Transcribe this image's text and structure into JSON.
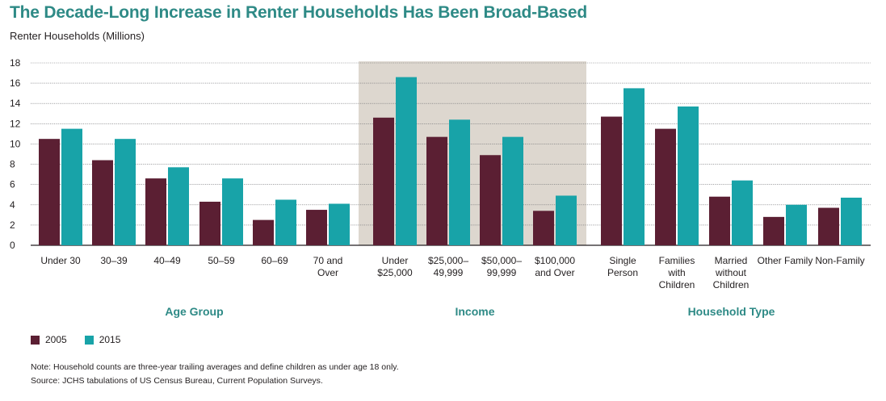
{
  "title": "The Decade-Long Increase in Renter Households Has Been Broad-Based",
  "subtitle": "Renter Households (Millions)",
  "colors": {
    "series_2005": "#5b1f33",
    "series_2015": "#18a3a8",
    "group_title": "#2e8a86",
    "highlight_band": "#ddd7cf"
  },
  "chart_data": {
    "type": "bar",
    "ylim": [
      0,
      18
    ],
    "yticks": [
      "0",
      "2",
      "4",
      "6",
      "8",
      "10",
      "12",
      "14",
      "16",
      "18"
    ],
    "grid": true,
    "legend_position": "bottom-left",
    "highlighted_group": "Income",
    "groups": [
      {
        "name": "Age Group",
        "categories": [
          [
            "Under 30"
          ],
          [
            "30–39"
          ],
          [
            "40–49"
          ],
          [
            "50–59"
          ],
          [
            "60–69"
          ],
          [
            "70 and",
            "Over"
          ]
        ]
      },
      {
        "name": "Income",
        "categories": [
          [
            "Under",
            "$25,000"
          ],
          [
            "$25,000–",
            "49,999"
          ],
          [
            "$50,000–",
            "99,999"
          ],
          [
            "$100,000",
            "and Over"
          ]
        ]
      },
      {
        "name": "Household Type",
        "categories": [
          [
            "Single",
            "Person"
          ],
          [
            "Families",
            "with",
            "Children"
          ],
          [
            "Married",
            "without",
            "Children"
          ],
          [
            "Other Family"
          ],
          [
            "Non-Family"
          ]
        ]
      }
    ],
    "series": [
      {
        "name": "2005",
        "values": [
          10.5,
          8.4,
          6.6,
          4.3,
          2.5,
          3.5,
          12.6,
          10.7,
          8.9,
          3.4,
          12.7,
          11.5,
          4.8,
          2.8,
          3.7
        ]
      },
      {
        "name": "2015",
        "values": [
          11.5,
          10.5,
          7.7,
          6.6,
          4.5,
          4.1,
          16.6,
          12.4,
          10.7,
          4.9,
          15.5,
          13.7,
          6.4,
          4.0,
          4.7
        ]
      }
    ]
  },
  "legend": [
    {
      "label": "2005"
    },
    {
      "label": "2015"
    }
  ],
  "notes": {
    "note": "Note: Household counts are three-year trailing averages and define children as under age 18 only.",
    "source": "Source: JCHS tabulations of US Census Bureau, Current Population Surveys."
  }
}
